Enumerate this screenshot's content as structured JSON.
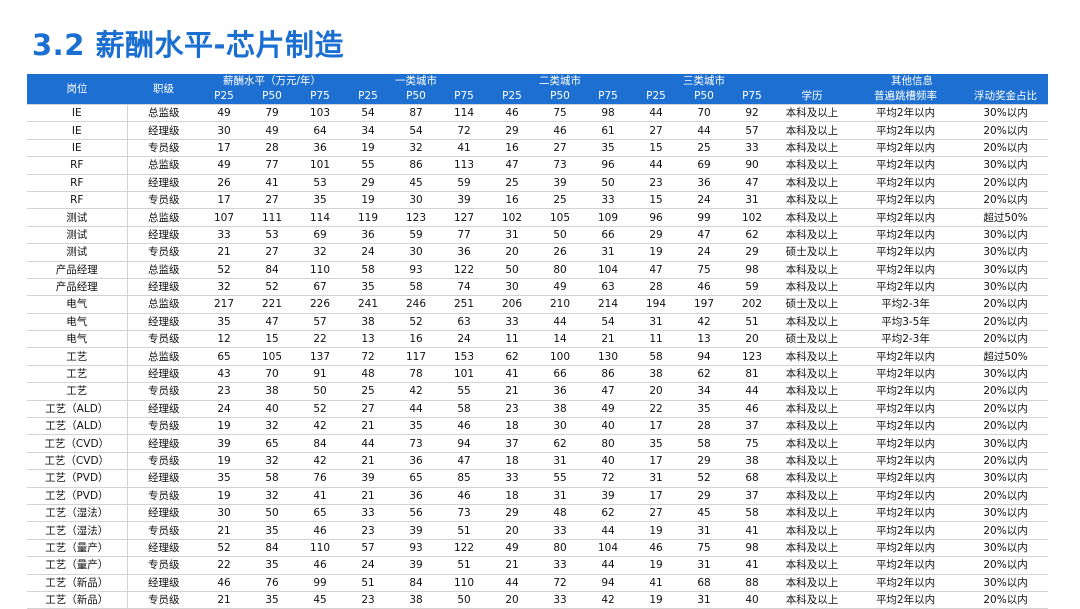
{
  "title": "3.2 薪酬水平-芯片制造",
  "header": {
    "role": "岗位",
    "level": "职级",
    "groups": [
      "薪酬水平（万元/年）",
      "一类城市",
      "二类城市",
      "三类城市",
      "其他信息"
    ],
    "pct": [
      "P25",
      "P50",
      "P75"
    ],
    "other": [
      "学历",
      "普遍跳槽频率",
      "浮动奖金占比"
    ]
  },
  "rows": [
    [
      "IE",
      "总监级",
      "49",
      "79",
      "103",
      "54",
      "87",
      "114",
      "46",
      "75",
      "98",
      "44",
      "70",
      "92",
      "本科及以上",
      "平均2年以内",
      "30%以内"
    ],
    [
      "IE",
      "经理级",
      "30",
      "49",
      "64",
      "34",
      "54",
      "72",
      "29",
      "46",
      "61",
      "27",
      "44",
      "57",
      "本科及以上",
      "平均2年以内",
      "20%以内"
    ],
    [
      "IE",
      "专员级",
      "17",
      "28",
      "36",
      "19",
      "32",
      "41",
      "16",
      "27",
      "35",
      "15",
      "25",
      "33",
      "本科及以上",
      "平均2年以内",
      "20%以内"
    ],
    [
      "RF",
      "总监级",
      "49",
      "77",
      "101",
      "55",
      "86",
      "113",
      "47",
      "73",
      "96",
      "44",
      "69",
      "90",
      "本科及以上",
      "平均2年以内",
      "30%以内"
    ],
    [
      "RF",
      "经理级",
      "26",
      "41",
      "53",
      "29",
      "45",
      "59",
      "25",
      "39",
      "50",
      "23",
      "36",
      "47",
      "本科及以上",
      "平均2年以内",
      "20%以内"
    ],
    [
      "RF",
      "专员级",
      "17",
      "27",
      "35",
      "19",
      "30",
      "39",
      "16",
      "25",
      "33",
      "15",
      "24",
      "31",
      "本科及以上",
      "平均2年以内",
      "20%以内"
    ],
    [
      "测试",
      "总监级",
      "107",
      "111",
      "114",
      "119",
      "123",
      "127",
      "102",
      "105",
      "109",
      "96",
      "99",
      "102",
      "本科及以上",
      "平均2年以内",
      "超过50%"
    ],
    [
      "测试",
      "经理级",
      "33",
      "53",
      "69",
      "36",
      "59",
      "77",
      "31",
      "50",
      "66",
      "29",
      "47",
      "62",
      "本科及以上",
      "平均2年以内",
      "30%以内"
    ],
    [
      "测试",
      "专员级",
      "21",
      "27",
      "32",
      "24",
      "30",
      "36",
      "20",
      "26",
      "31",
      "19",
      "24",
      "29",
      "硕士及以上",
      "平均2年以内",
      "30%以内"
    ],
    [
      "产品经理",
      "总监级",
      "52",
      "84",
      "110",
      "58",
      "93",
      "122",
      "50",
      "80",
      "104",
      "47",
      "75",
      "98",
      "本科及以上",
      "平均2年以内",
      "30%以内"
    ],
    [
      "产品经理",
      "经理级",
      "32",
      "52",
      "67",
      "35",
      "58",
      "74",
      "30",
      "49",
      "63",
      "28",
      "46",
      "59",
      "本科及以上",
      "平均2年以内",
      "30%以内"
    ],
    [
      "电气",
      "总监级",
      "217",
      "221",
      "226",
      "241",
      "246",
      "251",
      "206",
      "210",
      "214",
      "194",
      "197",
      "202",
      "硕士及以上",
      "平均2-3年",
      "20%以内"
    ],
    [
      "电气",
      "经理级",
      "35",
      "47",
      "57",
      "38",
      "52",
      "63",
      "33",
      "44",
      "54",
      "31",
      "42",
      "51",
      "本科及以上",
      "平均3-5年",
      "20%以内"
    ],
    [
      "电气",
      "专员级",
      "12",
      "15",
      "22",
      "13",
      "16",
      "24",
      "11",
      "14",
      "21",
      "11",
      "13",
      "20",
      "硕士及以上",
      "平均2-3年",
      "20%以内"
    ],
    [
      "工艺",
      "总监级",
      "65",
      "105",
      "137",
      "72",
      "117",
      "153",
      "62",
      "100",
      "130",
      "58",
      "94",
      "123",
      "本科及以上",
      "平均2年以内",
      "超过50%"
    ],
    [
      "工艺",
      "经理级",
      "43",
      "70",
      "91",
      "48",
      "78",
      "101",
      "41",
      "66",
      "86",
      "38",
      "62",
      "81",
      "本科及以上",
      "平均2年以内",
      "30%以内"
    ],
    [
      "工艺",
      "专员级",
      "23",
      "38",
      "50",
      "25",
      "42",
      "55",
      "21",
      "36",
      "47",
      "20",
      "34",
      "44",
      "本科及以上",
      "平均2年以内",
      "20%以内"
    ],
    [
      "工艺（ALD）",
      "经理级",
      "24",
      "40",
      "52",
      "27",
      "44",
      "58",
      "23",
      "38",
      "49",
      "22",
      "35",
      "46",
      "本科及以上",
      "平均2年以内",
      "20%以内"
    ],
    [
      "工艺（ALD）",
      "专员级",
      "19",
      "32",
      "42",
      "21",
      "35",
      "46",
      "18",
      "30",
      "40",
      "17",
      "28",
      "37",
      "本科及以上",
      "平均2年以内",
      "20%以内"
    ],
    [
      "工艺（CVD）",
      "经理级",
      "39",
      "65",
      "84",
      "44",
      "73",
      "94",
      "37",
      "62",
      "80",
      "35",
      "58",
      "75",
      "本科及以上",
      "平均2年以内",
      "30%以内"
    ],
    [
      "工艺（CVD）",
      "专员级",
      "19",
      "32",
      "42",
      "21",
      "36",
      "47",
      "18",
      "31",
      "40",
      "17",
      "29",
      "38",
      "本科及以上",
      "平均2年以内",
      "20%以内"
    ],
    [
      "工艺（PVD）",
      "经理级",
      "35",
      "58",
      "76",
      "39",
      "65",
      "85",
      "33",
      "55",
      "72",
      "31",
      "52",
      "68",
      "本科及以上",
      "平均2年以内",
      "30%以内"
    ],
    [
      "工艺（PVD）",
      "专员级",
      "19",
      "32",
      "41",
      "21",
      "36",
      "46",
      "18",
      "31",
      "39",
      "17",
      "29",
      "37",
      "本科及以上",
      "平均2年以内",
      "20%以内"
    ],
    [
      "工艺（湿法）",
      "经理级",
      "30",
      "50",
      "65",
      "33",
      "56",
      "73",
      "29",
      "48",
      "62",
      "27",
      "45",
      "58",
      "本科及以上",
      "平均2年以内",
      "30%以内"
    ],
    [
      "工艺（湿法）",
      "专员级",
      "21",
      "35",
      "46",
      "23",
      "39",
      "51",
      "20",
      "33",
      "44",
      "19",
      "31",
      "41",
      "本科及以上",
      "平均2年以内",
      "20%以内"
    ],
    [
      "工艺（量产）",
      "经理级",
      "52",
      "84",
      "110",
      "57",
      "93",
      "122",
      "49",
      "80",
      "104",
      "46",
      "75",
      "98",
      "本科及以上",
      "平均2年以内",
      "30%以内"
    ],
    [
      "工艺（量产）",
      "专员级",
      "22",
      "35",
      "46",
      "24",
      "39",
      "51",
      "21",
      "33",
      "44",
      "19",
      "31",
      "41",
      "本科及以上",
      "平均2年以内",
      "20%以内"
    ],
    [
      "工艺（新品）",
      "经理级",
      "46",
      "76",
      "99",
      "51",
      "84",
      "110",
      "44",
      "72",
      "94",
      "41",
      "68",
      "88",
      "本科及以上",
      "平均2年以内",
      "30%以内"
    ],
    [
      "工艺（新品）",
      "专员级",
      "21",
      "35",
      "45",
      "23",
      "38",
      "50",
      "20",
      "33",
      "42",
      "19",
      "31",
      "40",
      "本科及以上",
      "平均2年以内",
      "20%以内"
    ]
  ]
}
